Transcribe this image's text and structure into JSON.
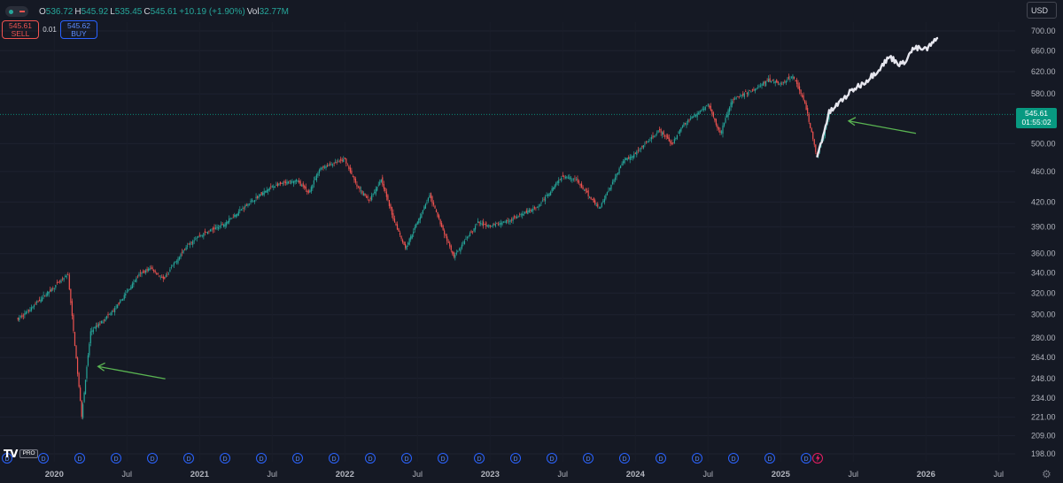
{
  "header": {
    "o_label": "O",
    "o_value": "536.72",
    "h_label": "H",
    "h_value": "545.92",
    "l_label": "L",
    "l_value": "535.45",
    "c_label": "C",
    "c_value": "545.61",
    "change": "+10.19 (+1.90%)",
    "vol_label": "Vol",
    "vol_value": "32.77M"
  },
  "trade": {
    "sell_price": "545.61",
    "sell_label": "SELL",
    "spread": "0.01",
    "buy_price": "545.62",
    "buy_label": "BUY"
  },
  "currency": "USD",
  "last_price": {
    "price": "545.61",
    "countdown": "01:55:02"
  },
  "branding": {
    "logo_text": "TV",
    "badge": "PRO"
  },
  "colors": {
    "background": "#151924",
    "up": "#26a69a",
    "down": "#ef5350",
    "projection": "#e6e6ee",
    "arrow": "#5ab552",
    "price_line": "#089981",
    "event_marker": "#2962ff",
    "flash_marker": "#e91e63"
  },
  "events": {
    "dividend_marker_label": "D",
    "flash_marker_icon": "lightning-icon",
    "count_dividends": 23
  },
  "chart_data": {
    "type": "candlestick",
    "scale": "log",
    "y_ticks": [
      700,
      660,
      620,
      580,
      545.61,
      500,
      460,
      420,
      390,
      360,
      340,
      320,
      300,
      280,
      264,
      248,
      234,
      221,
      209,
      198
    ],
    "y_tick_labels": [
      "700.00",
      "660.00",
      "620.00",
      "580.00",
      "",
      "500.00",
      "460.00",
      "420.00",
      "390.00",
      "360.00",
      "340.00",
      "320.00",
      "300.00",
      "280.00",
      "264.00",
      "248.00",
      "234.00",
      "221.00",
      "209.00",
      "198.00"
    ],
    "x_labels": [
      "2020",
      "Jul",
      "2021",
      "Jul",
      "2022",
      "Jul",
      "2023",
      "Jul",
      "2024",
      "Jul",
      "2025",
      "Jul",
      "2026",
      "Jul"
    ],
    "x_label_dates": [
      "2020-01",
      "2020-07",
      "2021-01",
      "2021-07",
      "2022-01",
      "2022-07",
      "2023-01",
      "2023-07",
      "2024-01",
      "2024-07",
      "2025-01",
      "2025-07",
      "2026-01",
      "2026-07"
    ],
    "ylim": [
      191,
      735
    ],
    "series": [
      {
        "type": "candlestick",
        "key_points": [
          [
            "2019-10",
            296
          ],
          [
            "2019-11",
            305
          ],
          [
            "2019-12",
            316
          ],
          [
            "2020-01",
            326
          ],
          [
            "2020-02-19",
            338
          ],
          [
            "2020-03-23",
            222
          ],
          [
            "2020-04",
            285
          ],
          [
            "2020-06",
            305
          ],
          [
            "2020-08",
            338
          ],
          [
            "2020-09",
            345
          ],
          [
            "2020-10",
            333
          ],
          [
            "2020-12",
            370
          ],
          [
            "2021-01",
            380
          ],
          [
            "2021-03",
            393
          ],
          [
            "2021-05",
            418
          ],
          [
            "2021-07",
            440
          ],
          [
            "2021-09",
            448
          ],
          [
            "2021-10",
            432
          ],
          [
            "2021-11",
            465
          ],
          [
            "2022-01",
            477
          ],
          [
            "2022-02",
            440
          ],
          [
            "2022-03",
            422
          ],
          [
            "2022-04",
            450
          ],
          [
            "2022-05",
            400
          ],
          [
            "2022-06",
            366
          ],
          [
            "2022-08",
            428
          ],
          [
            "2022-10",
            356
          ],
          [
            "2022-12",
            395
          ],
          [
            "2023-01",
            390
          ],
          [
            "2023-03",
            400
          ],
          [
            "2023-05",
            415
          ],
          [
            "2023-07",
            455
          ],
          [
            "2023-08",
            450
          ],
          [
            "2023-10",
            412
          ],
          [
            "2023-12",
            475
          ],
          [
            "2024-01",
            485
          ],
          [
            "2024-03",
            520
          ],
          [
            "2024-04",
            500
          ],
          [
            "2024-05",
            530
          ],
          [
            "2024-07",
            562
          ],
          [
            "2024-08",
            515
          ],
          [
            "2024-09",
            570
          ],
          [
            "2024-11",
            590
          ],
          [
            "2024-12",
            605
          ],
          [
            "2025-01",
            598
          ],
          [
            "2025-02",
            612
          ],
          [
            "2025-03",
            565
          ],
          [
            "2025-04",
            480
          ],
          [
            "2025-05",
            545.61
          ]
        ]
      },
      {
        "name": "",
        "type": "projection",
        "color": "#e6e6ee",
        "key_points": [
          [
            "2025-04",
            480
          ],
          [
            "2025-05",
            548
          ],
          [
            "2025-06",
            568
          ],
          [
            "2025-07",
            588
          ],
          [
            "2025-08",
            602
          ],
          [
            "2025-09",
            622
          ],
          [
            "2025-10",
            648
          ],
          [
            "2025-11",
            632
          ],
          [
            "2025-12",
            665
          ],
          [
            "2026-01",
            662
          ],
          [
            "2026-02",
            685
          ]
        ]
      }
    ],
    "annotations": [
      {
        "type": "arrow",
        "color": "#5ab552",
        "target": [
          "2020-03",
          257
        ]
      },
      {
        "type": "arrow",
        "color": "#5ab552",
        "target": [
          "2025-05",
          535
        ]
      }
    ],
    "last_price_line": 545.61
  }
}
